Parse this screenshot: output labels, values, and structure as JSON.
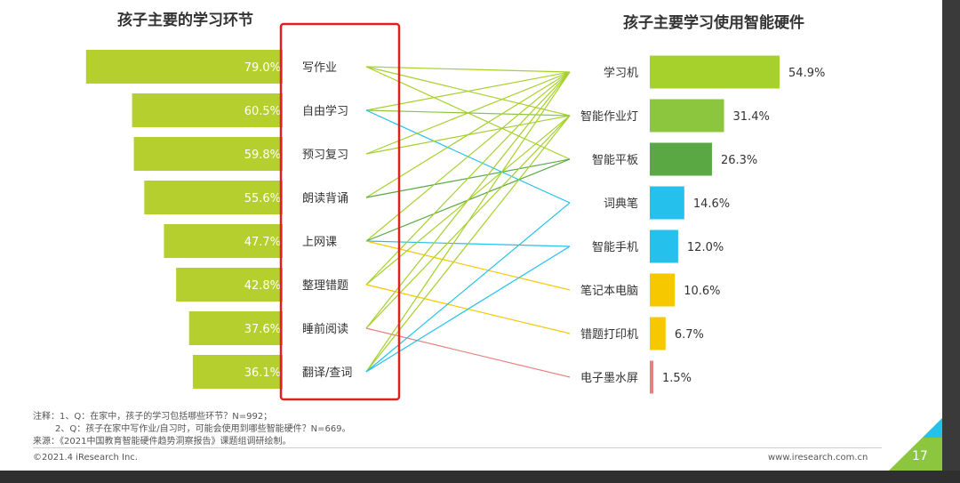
{
  "left_title": "孩子主要的学习环节",
  "right_title": "孩子主要学习使用智能硬件",
  "notes": [
    "注释：1、Q：在家中，孩子的学习包括哪些环节？N=992；",
    "2、Q：孩子在家中写作业/自习时，可能会使用到哪些智能硬件？N=669。",
    "来源：《2021中国教育智能硬件趋势洞察报告》课题组调研绘制。"
  ],
  "footer": {
    "copyright": "©2021.4 iResearch Inc.",
    "website": "www.iresearch.com.cn",
    "page": "17"
  },
  "colors": {
    "left_bar": "#b5cf2e",
    "highlight_box": "#e02020",
    "hardware": [
      "#a6d02c",
      "#8cc63f",
      "#5aa844",
      "#25c1ec",
      "#25c1ec",
      "#f6c800",
      "#f6c800",
      "#e88080"
    ]
  },
  "chart_data": [
    {
      "type": "bar",
      "orientation": "horizontal",
      "direction": "right-to-left",
      "title": "孩子主要的学习环节",
      "categories": [
        "写作业",
        "自由学习",
        "预习复习",
        "朗读背诵",
        "上网课",
        "整理错题",
        "睡前阅读",
        "翻译/查词"
      ],
      "values": [
        79.0,
        60.5,
        59.8,
        55.6,
        47.7,
        42.8,
        37.6,
        36.1
      ],
      "labels": [
        "79.0%",
        "60.5%",
        "59.8%",
        "55.6%",
        "47.7%",
        "42.8%",
        "37.6%",
        "36.1%"
      ],
      "unit": "%"
    },
    {
      "type": "bar",
      "orientation": "horizontal",
      "title": "孩子主要学习使用智能硬件",
      "categories": [
        "学习机",
        "智能作业灯",
        "智能平板",
        "词典笔",
        "智能手机",
        "笔记本电脑",
        "错题打印机",
        "电子墨水屏"
      ],
      "values": [
        54.9,
        31.4,
        26.3,
        14.6,
        12.0,
        10.6,
        6.7,
        1.5
      ],
      "labels": [
        "54.9%",
        "31.4%",
        "26.3%",
        "14.6%",
        "12.0%",
        "10.6%",
        "6.7%",
        "1.5%"
      ],
      "unit": "%"
    }
  ],
  "connections": [
    {
      "from": "写作业",
      "to": "学习机",
      "color": "#a6d02c"
    },
    {
      "from": "写作业",
      "to": "智能作业灯",
      "color": "#a6d02c"
    },
    {
      "from": "写作业",
      "to": "智能平板",
      "color": "#a6d02c"
    },
    {
      "from": "自由学习",
      "to": "学习机",
      "color": "#a6d02c"
    },
    {
      "from": "自由学习",
      "to": "智能作业灯",
      "color": "#8cc63f"
    },
    {
      "from": "自由学习",
      "to": "词典笔",
      "color": "#25c1ec"
    },
    {
      "from": "预习复习",
      "to": "学习机",
      "color": "#a6d02c"
    },
    {
      "from": "预习复习",
      "to": "智能作业灯",
      "color": "#a6d02c"
    },
    {
      "from": "朗读背诵",
      "to": "学习机",
      "color": "#a6d02c"
    },
    {
      "from": "朗读背诵",
      "to": "智能平板",
      "color": "#5aa844"
    },
    {
      "from": "上网课",
      "to": "学习机",
      "color": "#a6d02c"
    },
    {
      "from": "上网课",
      "to": "智能平板",
      "color": "#5aa844"
    },
    {
      "from": "上网课",
      "to": "智能手机",
      "color": "#25c1ec"
    },
    {
      "from": "上网课",
      "to": "笔记本电脑",
      "color": "#f6c800"
    },
    {
      "from": "整理错题",
      "to": "学习机",
      "color": "#a6d02c"
    },
    {
      "from": "整理错题",
      "to": "智能作业灯",
      "color": "#a6d02c"
    },
    {
      "from": "整理错题",
      "to": "错题打印机",
      "color": "#f6c800"
    },
    {
      "from": "睡前阅读",
      "to": "学习机",
      "color": "#a6d02c"
    },
    {
      "from": "睡前阅读",
      "to": "智能作业灯",
      "color": "#a6d02c"
    },
    {
      "from": "睡前阅读",
      "to": "电子墨水屏",
      "color": "#e88080"
    },
    {
      "from": "翻译/查词",
      "to": "学习机",
      "color": "#a6d02c"
    },
    {
      "from": "翻译/查词",
      "to": "智能作业灯",
      "color": "#a6d02c"
    },
    {
      "from": "翻译/查词",
      "to": "词典笔",
      "color": "#25c1ec"
    },
    {
      "from": "翻译/查词",
      "to": "智能手机",
      "color": "#25c1ec"
    }
  ]
}
